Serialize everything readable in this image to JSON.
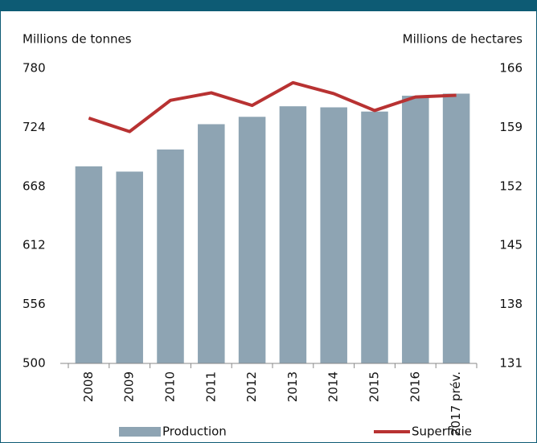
{
  "chart_data": {
    "type": "bar-line",
    "y_label": "Millions de tonnes",
    "y2_label": "Millions de hectares",
    "categories": [
      "2008",
      "2009",
      "2010",
      "2011",
      "2012",
      "2013",
      "2014",
      "2015",
      "2016",
      "2017 prév."
    ],
    "series": [
      {
        "name": "Production",
        "type": "bar",
        "color": "#8ea4b3",
        "values": [
          687,
          682,
          703,
          727,
          734,
          744,
          743,
          739,
          754,
          756
        ]
      },
      {
        "name": "Superficie",
        "type": "line",
        "axis": "y2",
        "color": "#b83232",
        "values": [
          160.1,
          158.5,
          162.2,
          163.1,
          161.6,
          164.3,
          163.0,
          161.0,
          162.6,
          162.8
        ]
      }
    ],
    "ylim": [
      500,
      780
    ],
    "yticks": [
      500,
      556,
      612,
      668,
      724,
      780
    ],
    "y2lim": [
      131,
      166
    ],
    "y2ticks": [
      131,
      138,
      145,
      152,
      159,
      166
    ],
    "grid": false,
    "legend": "bottom"
  }
}
